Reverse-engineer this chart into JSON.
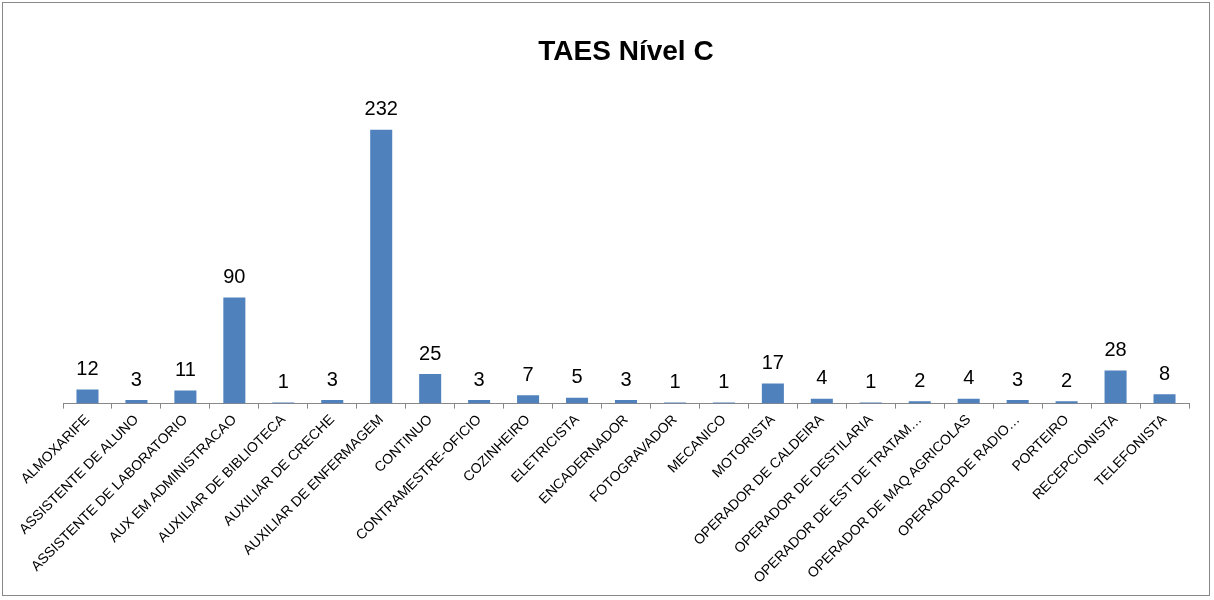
{
  "chart_data": {
    "type": "bar",
    "title": "TAES Nível C",
    "categories": [
      "ALMOXARIFE",
      "ASSISTENTE DE ALUNO",
      "ASSISTENTE DE LABORATORIO",
      "AUX EM ADMINISTRACAO",
      "AUXILIAR DE BIBLIOTECA",
      "AUXILIAR DE CRECHE",
      "AUXILIAR DE ENFERMAGEM",
      "CONTINUO",
      "CONTRAMESTRE-OFICIO",
      "COZINHEIRO",
      "ELETRICISTA",
      "ENCADERNADOR",
      "FOTOGRAVADOR",
      "MECANICO",
      "MOTORISTA",
      "OPERADOR DE CALDEIRA",
      "OPERADOR DE DESTILARIA",
      "OPERADOR DE EST DE TRATAM…",
      "OPERADOR DE MAQ AGRICOLAS",
      "OPERADOR DE RADIO…",
      "PORTEIRO",
      "RECEPCIONISTA",
      "TELEFONISTA"
    ],
    "values": [
      12,
      3,
      11,
      90,
      1,
      3,
      232,
      25,
      3,
      7,
      5,
      3,
      1,
      1,
      17,
      4,
      1,
      2,
      4,
      3,
      2,
      28,
      8
    ],
    "color": "#4f81bd",
    "data_labels": true,
    "grid": false,
    "legend": false
  }
}
